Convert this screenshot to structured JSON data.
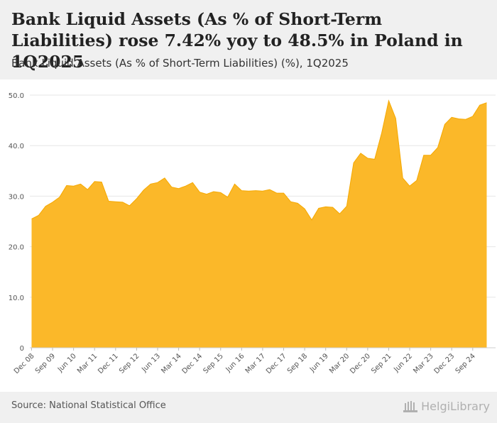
{
  "header": {
    "title": "Bank Liquid Assets (As % of Short-Term Liabilities) rose 7.42% yoy to 48.5% in Poland in 1Q2025",
    "subtitle": "Bank Liquid Assets (As % of Short-Term Liabilities) (%), 1Q2025"
  },
  "footer": {
    "source": "Source: National Statistical Office",
    "brand": "HelgiLibrary"
  },
  "colors": {
    "area_fill": "#fbb829",
    "grid": "#e6e6e6",
    "header_bg": "#f0f0f0"
  },
  "chart_data": {
    "type": "area",
    "title": "Bank Liquid Assets (As % of Short-Term Liabilities) (%)",
    "xlabel": "",
    "ylabel": "",
    "ylim": [
      0,
      50
    ],
    "yticks": [
      0,
      10,
      20,
      30,
      40,
      50
    ],
    "ytick_labels": [
      "0",
      "10.0",
      "20.0",
      "30.0",
      "40.0",
      "50.0"
    ],
    "grid": true,
    "legend": "none",
    "xtick_labels": [
      "Dec 08",
      "Sep 09",
      "Jun 10",
      "Mar 11",
      "Dec 11",
      "Sep 12",
      "Jun 13",
      "Mar 14",
      "Dec 14",
      "Sep 15",
      "Jun 16",
      "Mar 17",
      "Dec 17",
      "Sep 18",
      "Jun 19",
      "Mar 20",
      "Dec 20",
      "Sep 21",
      "Jun 22",
      "Mar 23",
      "Dec 23",
      "Sep 24"
    ],
    "x": [
      "Dec 08",
      "Mar 09",
      "Jun 09",
      "Sep 09",
      "Dec 09",
      "Mar 10",
      "Jun 10",
      "Sep 10",
      "Dec 10",
      "Mar 11",
      "Jun 11",
      "Sep 11",
      "Dec 11",
      "Mar 12",
      "Jun 12",
      "Sep 12",
      "Dec 12",
      "Mar 13",
      "Jun 13",
      "Sep 13",
      "Dec 13",
      "Mar 14",
      "Jun 14",
      "Sep 14",
      "Dec 14",
      "Mar 15",
      "Jun 15",
      "Sep 15",
      "Dec 15",
      "Mar 16",
      "Jun 16",
      "Sep 16",
      "Dec 16",
      "Mar 17",
      "Jun 17",
      "Sep 17",
      "Dec 17",
      "Mar 18",
      "Jun 18",
      "Sep 18",
      "Dec 18",
      "Mar 19",
      "Jun 19",
      "Sep 19",
      "Dec 19",
      "Mar 20",
      "Jun 20",
      "Sep 20",
      "Dec 20",
      "Mar 21",
      "Jun 21",
      "Sep 21",
      "Dec 21",
      "Mar 22",
      "Jun 22",
      "Sep 22",
      "Dec 22",
      "Mar 23",
      "Jun 23",
      "Sep 23",
      "Dec 23",
      "Mar 24",
      "Jun 24",
      "Sep 24",
      "Dec 24",
      "Mar 25"
    ],
    "values": [
      25.5,
      26.2,
      28.0,
      28.8,
      29.8,
      32.1,
      32.0,
      32.4,
      31.3,
      32.9,
      32.8,
      29.0,
      28.9,
      28.8,
      28.1,
      29.5,
      31.2,
      32.4,
      32.7,
      33.6,
      31.8,
      31.5,
      32.0,
      32.7,
      30.8,
      30.4,
      30.9,
      30.7,
      29.8,
      32.4,
      31.1,
      31.0,
      31.1,
      31.0,
      31.3,
      30.6,
      30.6,
      28.9,
      28.6,
      27.5,
      25.3,
      27.6,
      27.9,
      27.8,
      26.5,
      28.0,
      36.6,
      38.5,
      37.5,
      37.3,
      42.5,
      48.9,
      45.4,
      33.6,
      32.0,
      33.1,
      38.1,
      38.1,
      39.6,
      44.2,
      45.6,
      45.3,
      45.2,
      45.8,
      48.0,
      48.5
    ]
  }
}
